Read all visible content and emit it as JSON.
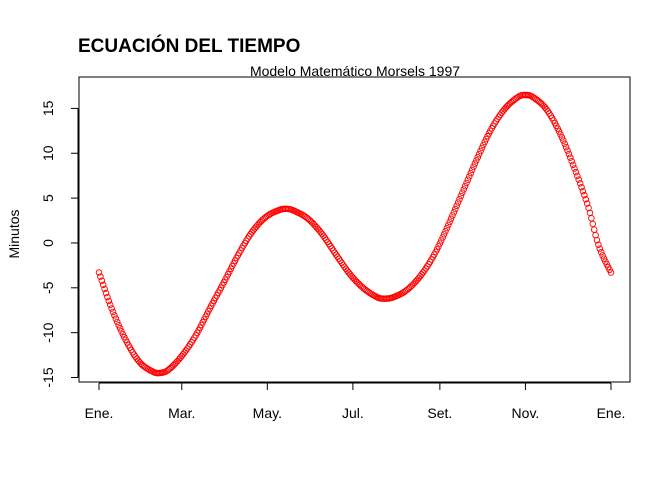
{
  "chart_data": {
    "type": "scatter",
    "title": "ECUACIÓN DEL TIEMPO",
    "subtitle": "Modelo Matemático Morsels 1997",
    "xlabel": "",
    "ylabel": "Minutos",
    "x_ticks": [
      {
        "label": "Ene.",
        "day": 1
      },
      {
        "label": "Mar.",
        "day": 60
      },
      {
        "label": "May.",
        "day": 121
      },
      {
        "label": "Jul.",
        "day": 182
      },
      {
        "label": "Set.",
        "day": 244
      },
      {
        "label": "Nov.",
        "day": 305
      },
      {
        "label": "Ene.",
        "day": 366
      }
    ],
    "y_ticks": [
      -15,
      -10,
      -5,
      0,
      5,
      10,
      15
    ],
    "xlim": [
      1,
      366
    ],
    "ylim": [
      -15.5,
      18.5
    ],
    "marker": "open-circle",
    "marker_color": "#ff0000",
    "grid": false,
    "series": [
      {
        "points": [
          [
            1,
            -3.3
          ],
          [
            10,
            -7.3
          ],
          [
            20,
            -10.8
          ],
          [
            30,
            -13.3
          ],
          [
            40,
            -14.4
          ],
          [
            44,
            -14.5
          ],
          [
            50,
            -14.2
          ],
          [
            60,
            -12.6
          ],
          [
            70,
            -10.3
          ],
          [
            80,
            -7.3
          ],
          [
            90,
            -4.4
          ],
          [
            100,
            -1.4
          ],
          [
            110,
            1.2
          ],
          [
            120,
            2.9
          ],
          [
            130,
            3.7
          ],
          [
            135,
            3.8
          ],
          [
            140,
            3.6
          ],
          [
            150,
            2.7
          ],
          [
            160,
            1.0
          ],
          [
            170,
            -1.3
          ],
          [
            180,
            -3.5
          ],
          [
            190,
            -5.1
          ],
          [
            200,
            -6.1
          ],
          [
            205,
            -6.2
          ],
          [
            210,
            -6.1
          ],
          [
            220,
            -5.3
          ],
          [
            230,
            -3.7
          ],
          [
            240,
            -1.3
          ],
          [
            250,
            2.0
          ],
          [
            260,
            5.6
          ],
          [
            270,
            9.2
          ],
          [
            280,
            12.5
          ],
          [
            290,
            14.9
          ],
          [
            300,
            16.3
          ],
          [
            305,
            16.5
          ],
          [
            310,
            16.3
          ],
          [
            320,
            14.9
          ],
          [
            330,
            12.1
          ],
          [
            340,
            8.3
          ],
          [
            350,
            3.9
          ],
          [
            356,
            0.3
          ],
          [
            360,
            -1.4
          ],
          [
            366,
            -3.3
          ]
        ]
      }
    ]
  }
}
